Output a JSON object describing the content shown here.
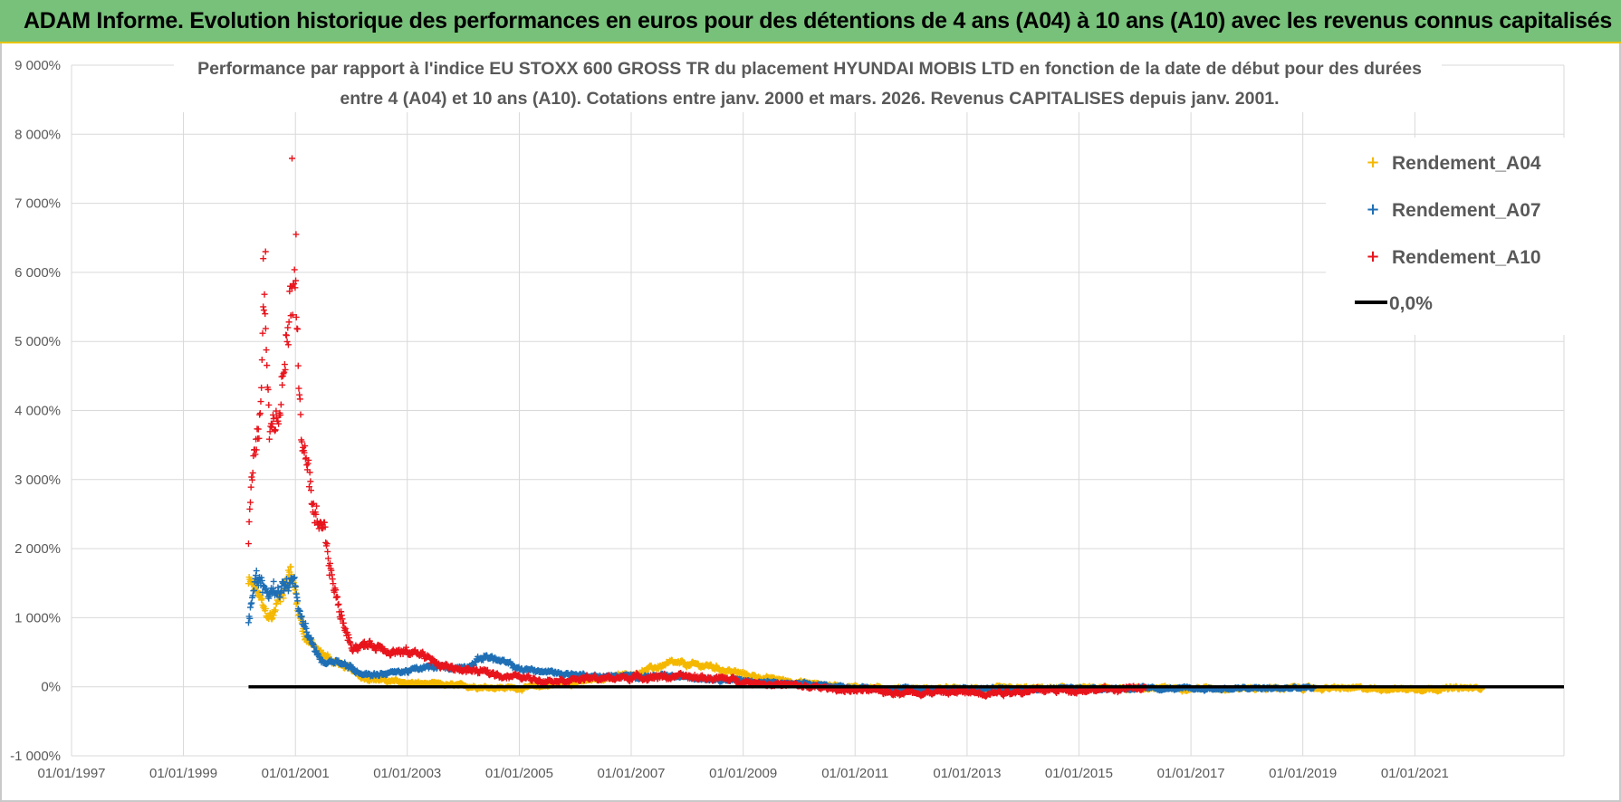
{
  "banner": {
    "text": "ADAM Informe. Evolution historique des performances en euros pour des détentions de 4 ans (A04) à 10 ans (A10) avec les revenus connus capitalisés"
  },
  "colors": {
    "banner_bg": "#77c17a",
    "banner_border": "#e8c400",
    "A04": "#f5b800",
    "A07": "#1f6fb5",
    "A10": "#e8141c",
    "zero_line": "#000000",
    "grid": "#d9d9d9"
  },
  "chart_data": {
    "type": "scatter",
    "title_lines": [
      "Performance par rapport à l'indice EU STOXX 600 GROSS TR  du placement HYUNDAI MOBIS LTD en fonction de la date de début pour des durées",
      "entre 4 (A04) et 10 ans (A10). Cotations entre janv. 2000 et mars. 2026. Revenus CAPITALISES depuis janv. 2001."
    ],
    "x_axis": {
      "type": "date",
      "min": "1997-01-01",
      "max": "2023-09-01",
      "ticks": [
        "1997-01-01",
        "1999-01-01",
        "2001-01-01",
        "2003-01-01",
        "2005-01-01",
        "2007-01-01",
        "2009-01-01",
        "2011-01-01",
        "2013-01-01",
        "2015-01-01",
        "2017-01-01",
        "2019-01-01",
        "2021-01-01"
      ],
      "tick_labels": [
        "01/01/1997",
        "01/01/1999",
        "01/01/2001",
        "01/01/2003",
        "01/01/2005",
        "01/01/2007",
        "01/01/2009",
        "01/01/2011",
        "01/01/2013",
        "01/01/2015",
        "01/01/2017",
        "01/01/2019",
        "01/01/2021"
      ]
    },
    "y_axis": {
      "unit": "%",
      "min": -1000,
      "max": 9000,
      "ticks": [
        -1000,
        0,
        1000,
        2000,
        3000,
        4000,
        5000,
        6000,
        7000,
        8000,
        9000
      ],
      "tick_labels": [
        "-1 000%",
        "0%",
        "1 000%",
        "2 000%",
        "3 000%",
        "4 000%",
        "5 000%",
        "6 000%",
        "7 000%",
        "8 000%",
        "9 000%"
      ]
    },
    "grid": true,
    "legend_position": "top-right",
    "series": [
      {
        "name": "Rendement_A04",
        "color_key": "A04",
        "marker": "plus",
        "start": "2000-03-01",
        "end": "2022-03-15",
        "keypoints": [
          [
            "2000-03-01",
            1500
          ],
          [
            "2000-05-01",
            1350
          ],
          [
            "2000-06-15",
            1050
          ],
          [
            "2000-08-01",
            1000
          ],
          [
            "2000-10-15",
            1450
          ],
          [
            "2000-12-01",
            1700
          ],
          [
            "2001-01-15",
            1200
          ],
          [
            "2001-03-01",
            750
          ],
          [
            "2001-06-01",
            500
          ],
          [
            "2001-09-01",
            380
          ],
          [
            "2001-12-01",
            280
          ],
          [
            "2002-03-01",
            150
          ],
          [
            "2002-09-01",
            80
          ],
          [
            "2003-03-01",
            50
          ],
          [
            "2004-01-01",
            10
          ],
          [
            "2005-01-01",
            -20
          ],
          [
            "2006-01-01",
            60
          ],
          [
            "2007-01-01",
            180
          ],
          [
            "2007-09-01",
            330
          ],
          [
            "2008-06-01",
            300
          ],
          [
            "2009-01-01",
            180
          ],
          [
            "2009-06-01",
            120
          ],
          [
            "2010-06-01",
            30
          ],
          [
            "2011-06-01",
            -20
          ],
          [
            "2013-01-01",
            -30
          ],
          [
            "2015-01-01",
            -20
          ],
          [
            "2017-01-01",
            -20
          ],
          [
            "2019-01-01",
            -20
          ],
          [
            "2021-01-01",
            -30
          ],
          [
            "2022-03-15",
            -20
          ]
        ],
        "noise": 35
      },
      {
        "name": "Rendement_A07",
        "color_key": "A07",
        "marker": "plus",
        "start": "2000-03-01",
        "end": "2019-03-15",
        "keypoints": [
          [
            "2000-03-01",
            1000
          ],
          [
            "2000-04-15",
            1600
          ],
          [
            "2000-07-01",
            1350
          ],
          [
            "2000-10-01",
            1450
          ],
          [
            "2000-12-15",
            1500
          ],
          [
            "2001-02-15",
            900
          ],
          [
            "2001-05-01",
            550
          ],
          [
            "2001-07-01",
            350
          ],
          [
            "2001-10-01",
            400
          ],
          [
            "2002-02-01",
            220
          ],
          [
            "2002-06-01",
            180
          ],
          [
            "2002-12-01",
            220
          ],
          [
            "2003-06-01",
            280
          ],
          [
            "2004-01-01",
            280
          ],
          [
            "2004-06-01",
            450
          ],
          [
            "2005-01-01",
            260
          ],
          [
            "2005-06-01",
            220
          ],
          [
            "2006-06-01",
            150
          ],
          [
            "2007-06-01",
            150
          ],
          [
            "2008-06-01",
            130
          ],
          [
            "2009-01-01",
            90
          ],
          [
            "2009-06-01",
            60
          ],
          [
            "2010-06-01",
            20
          ],
          [
            "2011-06-01",
            -30
          ],
          [
            "2013-01-01",
            -30
          ],
          [
            "2015-01-01",
            -20
          ],
          [
            "2017-01-01",
            -30
          ],
          [
            "2019-03-15",
            -20
          ]
        ],
        "noise": 30
      },
      {
        "name": "Rendement_A10",
        "color_key": "A10",
        "marker": "plus",
        "start": "2000-03-01",
        "end": "2016-03-15",
        "keypoints": [
          [
            "2000-03-01",
            2200
          ],
          [
            "2000-04-01",
            3300
          ],
          [
            "2000-05-15",
            4000
          ],
          [
            "2000-06-15",
            5800
          ],
          [
            "2000-07-15",
            3800
          ],
          [
            "2000-09-15",
            3800
          ],
          [
            "2000-10-20",
            4600
          ],
          [
            "2000-12-01",
            5700
          ],
          [
            "2001-01-01",
            5800
          ],
          [
            "2001-02-01",
            3900
          ],
          [
            "2001-03-15",
            3200
          ],
          [
            "2001-05-01",
            2300
          ],
          [
            "2001-07-15",
            2100
          ],
          [
            "2001-10-01",
            1200
          ],
          [
            "2002-01-01",
            600
          ],
          [
            "2002-06-01",
            600
          ],
          [
            "2003-01-01",
            480
          ],
          [
            "2003-04-01",
            500
          ],
          [
            "2003-08-01",
            300
          ],
          [
            "2004-06-01",
            200
          ],
          [
            "2005-06-01",
            100
          ],
          [
            "2006-06-01",
            120
          ],
          [
            "2007-06-01",
            150
          ],
          [
            "2008-06-01",
            130
          ],
          [
            "2009-06-01",
            50
          ],
          [
            "2010-06-01",
            -20
          ],
          [
            "2011-06-01",
            -70
          ],
          [
            "2012-06-01",
            -80
          ],
          [
            "2013-06-01",
            -80
          ],
          [
            "2014-06-01",
            -50
          ],
          [
            "2015-06-01",
            -40
          ],
          [
            "2016-03-15",
            -20
          ]
        ],
        "noise": 50,
        "outliers": [
          [
            "2000-12-10",
            7650
          ],
          [
            "2001-01-05",
            6550
          ],
          [
            "2000-06-20",
            6300
          ],
          [
            "2000-06-05",
            6200
          ]
        ]
      }
    ],
    "reference_line": {
      "name": "0,0%",
      "y": 0,
      "start": "2000-03-01",
      "end": "2023-09-01",
      "color_key": "zero_line"
    }
  }
}
